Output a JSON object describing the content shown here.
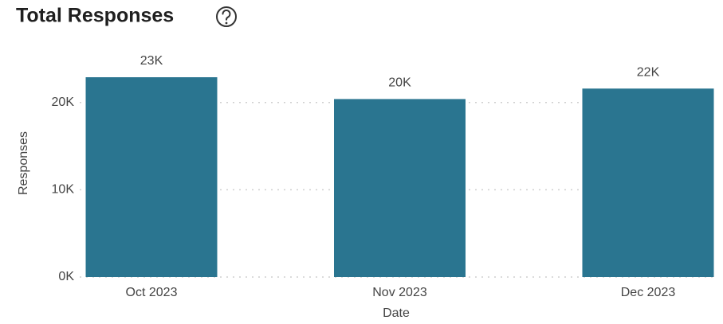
{
  "chart_data": {
    "type": "bar",
    "title": "Total Responses",
    "x_label": "Date",
    "y_label": "Responses",
    "categories": [
      "Oct 2023",
      "Nov 2023",
      "Dec 2023"
    ],
    "values": [
      22900,
      20400,
      21600
    ],
    "value_labels": [
      "23K",
      "20K",
      "22K"
    ],
    "color": "#2a7590",
    "ylim": [
      0,
      25000
    ],
    "yticks": [
      {
        "value": 0,
        "label": "0K"
      },
      {
        "value": 10000,
        "label": "10K"
      },
      {
        "value": 20000,
        "label": "20K"
      }
    ],
    "grid": true
  }
}
